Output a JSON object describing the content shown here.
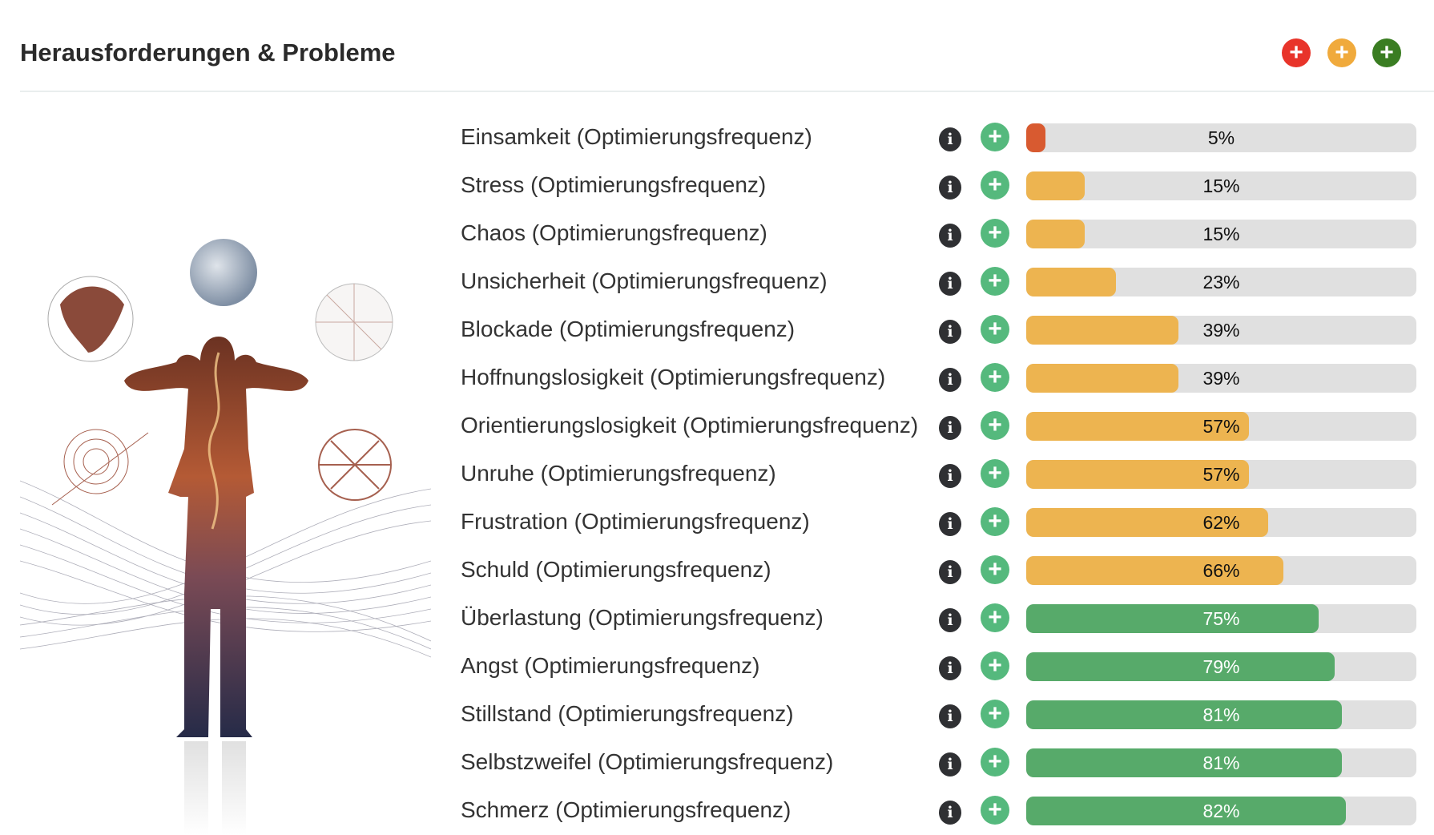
{
  "header": {
    "title": "Herausforderungen & Probleme",
    "buttons": [
      {
        "name": "add-red-button",
        "symbol": "+",
        "color": "#e8342a"
      },
      {
        "name": "add-orange-button",
        "symbol": "+",
        "color": "#f0aa3c"
      },
      {
        "name": "add-green-button",
        "symbol": "+",
        "color": "#3a7d22"
      }
    ]
  },
  "colors": {
    "low": "#d85a30",
    "mid": "#edb450",
    "high": "#57aa6a",
    "track": "#e0e0e0",
    "add": "#55b97d"
  },
  "icons": {
    "info": "i",
    "add": "+"
  },
  "items": [
    {
      "label": "Einsamkeit (Optimierungsfrequenz)",
      "percent": 5,
      "percent_text": "5%",
      "level": "low"
    },
    {
      "label": "Stress (Optimierungsfrequenz)",
      "percent": 15,
      "percent_text": "15%",
      "level": "mid"
    },
    {
      "label": "Chaos (Optimierungsfrequenz)",
      "percent": 15,
      "percent_text": "15%",
      "level": "mid"
    },
    {
      "label": "Unsicherheit (Optimierungsfrequenz)",
      "percent": 23,
      "percent_text": "23%",
      "level": "mid"
    },
    {
      "label": "Blockade (Optimierungsfrequenz)",
      "percent": 39,
      "percent_text": "39%",
      "level": "mid"
    },
    {
      "label": "Hoffnungslosigkeit (Optimierungsfrequenz)",
      "percent": 39,
      "percent_text": "39%",
      "level": "mid"
    },
    {
      "label": "Orientierungslosigkeit (Optimierungsfrequenz)",
      "percent": 57,
      "percent_text": "57%",
      "level": "mid"
    },
    {
      "label": "Unruhe (Optimierungsfrequenz)",
      "percent": 57,
      "percent_text": "57%",
      "level": "mid"
    },
    {
      "label": "Frustration (Optimierungsfrequenz)",
      "percent": 62,
      "percent_text": "62%",
      "level": "mid"
    },
    {
      "label": "Schuld (Optimierungsfrequenz)",
      "percent": 66,
      "percent_text": "66%",
      "level": "mid"
    },
    {
      "label": "Überlastung (Optimierungsfrequenz)",
      "percent": 75,
      "percent_text": "75%",
      "level": "high"
    },
    {
      "label": "Angst (Optimierungsfrequenz)",
      "percent": 79,
      "percent_text": "79%",
      "level": "high"
    },
    {
      "label": "Stillstand (Optimierungsfrequenz)",
      "percent": 81,
      "percent_text": "81%",
      "level": "high"
    },
    {
      "label": "Selbstzweifel (Optimierungsfrequenz)",
      "percent": 81,
      "percent_text": "81%",
      "level": "high"
    },
    {
      "label": "Schmerz (Optimierungsfrequenz)",
      "percent": 82,
      "percent_text": "82%",
      "level": "high"
    }
  ]
}
